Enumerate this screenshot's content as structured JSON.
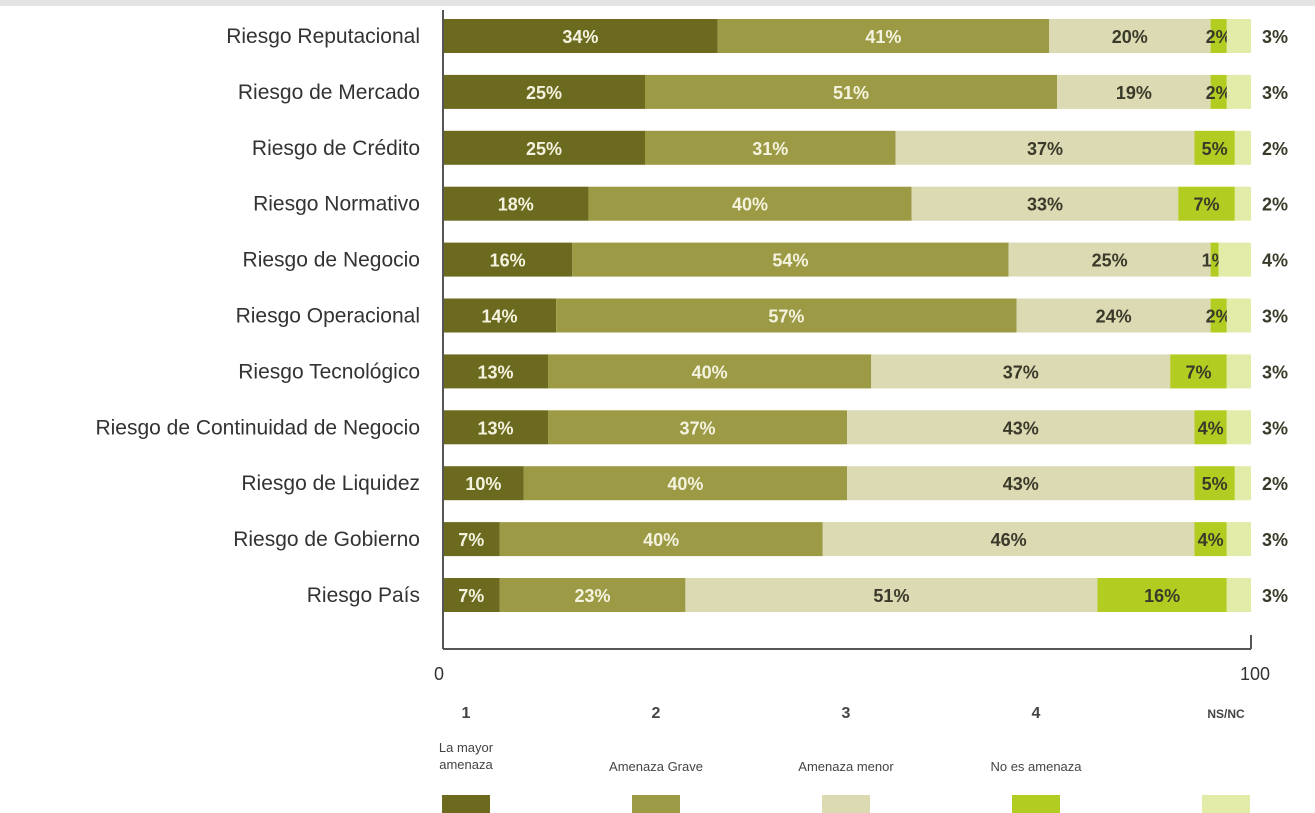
{
  "chart_data": {
    "type": "bar",
    "orientation": "horizontal",
    "stacked": true,
    "xlim": [
      0,
      100
    ],
    "x_ticks": [
      "0",
      "100"
    ],
    "grid": false,
    "legend_placement": "bottom",
    "categories": [
      "Riesgo Reputacional",
      "Riesgo de Mercado",
      "Riesgo de Crédito",
      "Riesgo Normativo",
      "Riesgo de Negocio",
      "Riesgo Operacional",
      "Riesgo Tecnológico",
      "Riesgo de Continuidad de Negocio",
      "Riesgo de Liquidez",
      "Riesgo de Gobierno",
      "Riesgo País"
    ],
    "series": [
      {
        "key": "1",
        "name": "La mayor amenaza",
        "color": "#6b6a1e",
        "label_style": "light",
        "values": [
          34,
          25,
          25,
          18,
          16,
          14,
          13,
          13,
          10,
          7,
          7
        ]
      },
      {
        "key": "2",
        "name": "Amenaza Grave",
        "color": "#9c9a44",
        "label_style": "light",
        "values": [
          41,
          51,
          31,
          40,
          54,
          57,
          40,
          37,
          40,
          40,
          23
        ]
      },
      {
        "key": "3",
        "name": "Amenaza menor",
        "color": "#dcdab3",
        "label_style": "dark",
        "values": [
          20,
          19,
          37,
          33,
          25,
          24,
          37,
          43,
          43,
          46,
          51
        ]
      },
      {
        "key": "4",
        "name": "No es amenaza",
        "color": "#b3cc22",
        "label_style": "dark",
        "values": [
          2,
          2,
          5,
          7,
          1,
          2,
          7,
          4,
          5,
          4,
          16
        ]
      },
      {
        "key": "NS/NC",
        "name": "",
        "color": "#e3eba8",
        "label_style": "outside",
        "values": [
          3,
          3,
          2,
          2,
          4,
          3,
          3,
          3,
          2,
          3,
          3
        ]
      }
    ],
    "legend": [
      {
        "key": "1",
        "label": "La mayor amenaza",
        "color": "#6b6a1e"
      },
      {
        "key": "2",
        "label": "Amenaza Grave",
        "color": "#9c9a44"
      },
      {
        "key": "3",
        "label": "Amenaza menor",
        "color": "#dcdab3"
      },
      {
        "key": "4",
        "label": "No es amenaza",
        "color": "#b3cc22"
      },
      {
        "key": "NS/NC",
        "label": "",
        "color": "#e3eba8"
      }
    ]
  }
}
